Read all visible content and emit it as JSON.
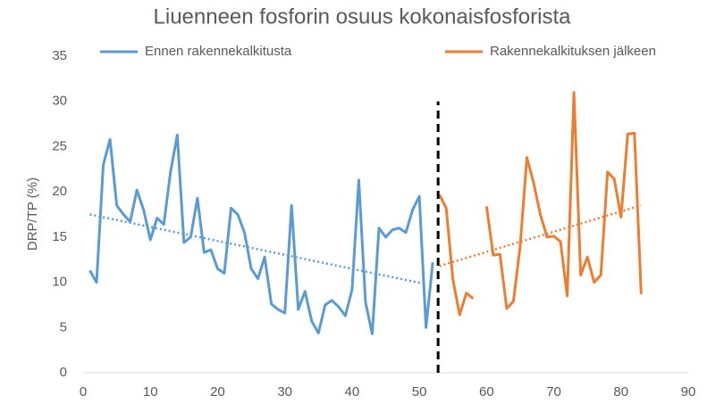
{
  "chart_data": {
    "type": "line",
    "title": "Liuenneen fosforin osuus kokonaisfosforista",
    "y_label": "DRP/TP (%)",
    "series": [
      {
        "name": "Ennen rakennekalkitusta",
        "color": "#5b9bd5",
        "x": [
          1,
          2,
          3,
          4,
          5,
          6,
          7,
          8,
          9,
          10,
          11,
          12,
          13,
          14,
          15,
          16,
          17,
          18,
          19,
          20,
          21,
          22,
          23,
          24,
          25,
          26,
          27,
          28,
          29,
          30,
          31,
          32,
          33,
          34,
          35,
          36,
          37,
          38,
          39,
          40,
          41,
          42,
          43,
          44,
          45,
          46,
          47,
          48,
          49,
          50,
          51,
          52
        ],
        "values": [
          11.3,
          10,
          23,
          25.8,
          18.5,
          17.5,
          16.7,
          20.2,
          18,
          14.7,
          17.1,
          16.4,
          22.2,
          26.3,
          14.4,
          15,
          19.3,
          13.3,
          13.6,
          11.5,
          11,
          18.2,
          17.5,
          15.5,
          11.5,
          10.4,
          12.8,
          7.6,
          7,
          6.6,
          18.5,
          7,
          9,
          5.7,
          4.4,
          7.5,
          8,
          7.3,
          6.3,
          9.2,
          21.3,
          7.8,
          4.3,
          16,
          15,
          15.8,
          16,
          15.5,
          18,
          19.5,
          5,
          12.2
        ],
        "trend": {
          "x": [
            1,
            51
          ],
          "values": [
            17.5,
            9.8
          ]
        }
      },
      {
        "name": "Rakennekalkituksen jälkeen",
        "color": "#ed7d31",
        "x": [
          53,
          54,
          55,
          56,
          57,
          58,
          59,
          60,
          61,
          62,
          63,
          64,
          65,
          66,
          67,
          68,
          69,
          70,
          71,
          72,
          73,
          74,
          75,
          76,
          77,
          78,
          79,
          80,
          81,
          82,
          83
        ],
        "values": [
          19.7,
          18.2,
          10.3,
          6.4,
          8.8,
          8.2,
          null,
          18.4,
          13,
          13.1,
          7.1,
          7.9,
          14,
          23.8,
          21,
          17.5,
          15,
          15.1,
          14.5,
          8.5,
          31,
          10.8,
          12.8,
          10,
          10.8,
          22.2,
          21.4,
          17.2,
          26.4,
          26.5,
          8.7
        ],
        "trend": {
          "x": [
            53,
            83
          ],
          "values": [
            11.8,
            18.5
          ]
        }
      }
    ],
    "vline": {
      "x": 52.8,
      "values": [
        0,
        30
      ],
      "color": "#000000"
    },
    "xlim": [
      0,
      90
    ],
    "xticks": [
      0,
      10,
      20,
      30,
      40,
      50,
      60,
      70,
      80,
      90
    ],
    "ylim": [
      0,
      35
    ],
    "yticks": [
      0,
      5,
      10,
      15,
      20,
      25,
      30,
      35
    ]
  }
}
